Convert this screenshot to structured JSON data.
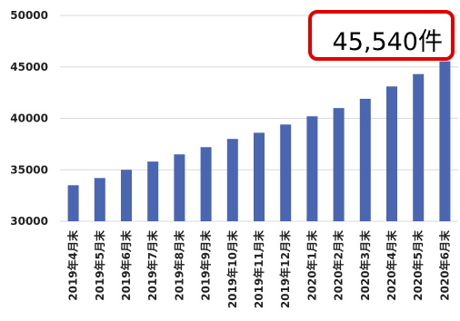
{
  "chart_data": {
    "type": "bar",
    "categories": [
      "2019年4月末",
      "2019年5月末",
      "2019年6月末",
      "2019年7月末",
      "2019年8月末",
      "2019年9月末",
      "2019年10月末",
      "2019年11月末",
      "2019年12月末",
      "2020年1月末",
      "2020年2月末",
      "2020年3月末",
      "2020年4月末",
      "2020年5月末",
      "2020年6月末"
    ],
    "values": [
      33500,
      34200,
      35000,
      35800,
      36500,
      37200,
      38000,
      38600,
      39400,
      40200,
      41000,
      41900,
      43100,
      44300,
      45540
    ],
    "ylim": [
      30000,
      50000
    ],
    "yticks": [
      30000,
      35000,
      40000,
      45000,
      50000
    ],
    "title": "",
    "xlabel": "",
    "ylabel": "",
    "grid": true,
    "legend": "none",
    "bar_color": "#4a66b0",
    "grid_color": "#d9d9d9"
  },
  "callout": {
    "text": "45,540件",
    "border_color": "#e00000"
  }
}
